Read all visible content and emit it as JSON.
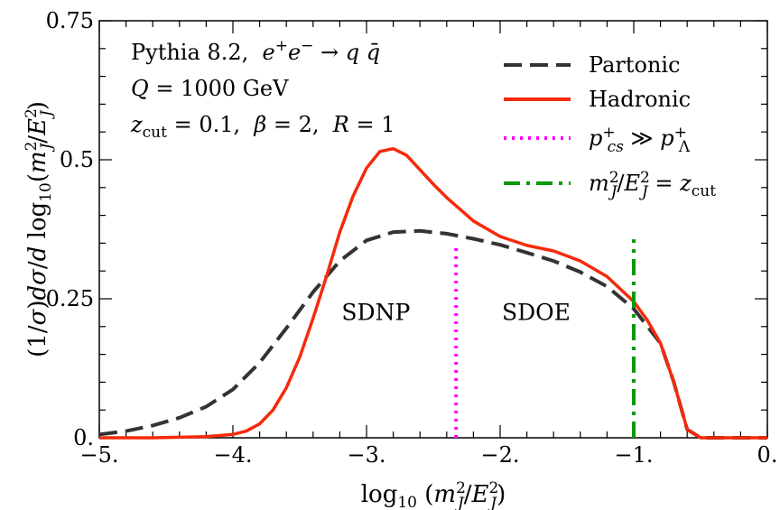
{
  "chart_data": {
    "type": "line",
    "title": "",
    "xlabel": "log₁₀(m²J/E²J)",
    "ylabel": "(1/σ)dσ/d log₁₀(m²J/E²J)",
    "xlim": [
      -5.0,
      0.0
    ],
    "ylim": [
      0.0,
      0.75
    ],
    "x_ticks": [
      -5,
      -4,
      -3,
      -2,
      -1,
      0
    ],
    "x_tick_labels": [
      "−5.",
      "−4.",
      "−3.",
      "−2.",
      "−1.",
      "0."
    ],
    "y_ticks": [
      0,
      0.25,
      0.5,
      0.75
    ],
    "y_tick_labels": [
      "0.",
      "0.25",
      "0.5",
      "0.75"
    ],
    "grid": false,
    "legend_position": "top-right",
    "info_lines": [
      {
        "main": "Pythia 8.2,  e⁺e⁻ → q q̄"
      },
      {
        "main": "Q = 1000 GeV"
      },
      {
        "main": "z_cut = 0.1,  β = 2,  R = 1"
      }
    ],
    "region_labels": [
      {
        "text": "SDNP",
        "x": -2.93,
        "y": 0.225
      },
      {
        "text": "SDOE",
        "x": -1.73,
        "y": 0.225
      }
    ],
    "series": [
      {
        "name": "Partonic",
        "color": "#333333",
        "style": "dashed",
        "x": [
          -5.0,
          -4.8,
          -4.6,
          -4.4,
          -4.2,
          -4.0,
          -3.8,
          -3.6,
          -3.4,
          -3.2,
          -3.0,
          -2.8,
          -2.6,
          -2.4,
          -2.2,
          -2.0,
          -1.8,
          -1.6,
          -1.4,
          -1.2,
          -1.0,
          -0.8,
          -0.7,
          -0.6,
          -0.5,
          -0.4,
          -0.2,
          0.0
        ],
        "values": [
          0.006,
          0.012,
          0.022,
          0.036,
          0.056,
          0.087,
          0.135,
          0.197,
          0.262,
          0.318,
          0.355,
          0.37,
          0.372,
          0.367,
          0.358,
          0.347,
          0.333,
          0.318,
          0.298,
          0.272,
          0.232,
          0.17,
          0.1,
          0.015,
          0.0,
          0.0,
          0.0,
          0.0
        ]
      },
      {
        "name": "Hadronic",
        "color": "#f52a0a",
        "style": "solid",
        "x": [
          -5.0,
          -4.6,
          -4.2,
          -4.0,
          -3.9,
          -3.8,
          -3.7,
          -3.6,
          -3.5,
          -3.4,
          -3.3,
          -3.2,
          -3.1,
          -3.0,
          -2.9,
          -2.8,
          -2.7,
          -2.6,
          -2.5,
          -2.4,
          -2.2,
          -2.0,
          -1.8,
          -1.6,
          -1.4,
          -1.2,
          -1.0,
          -0.9,
          -0.8,
          -0.7,
          -0.6,
          -0.5,
          -0.4,
          -0.2,
          0.0
        ],
        "values": [
          0.0,
          0.0,
          0.002,
          0.006,
          0.012,
          0.025,
          0.05,
          0.09,
          0.145,
          0.215,
          0.29,
          0.37,
          0.435,
          0.485,
          0.515,
          0.52,
          0.508,
          0.482,
          0.456,
          0.432,
          0.39,
          0.362,
          0.346,
          0.336,
          0.318,
          0.29,
          0.245,
          0.212,
          0.17,
          0.1,
          0.015,
          0.0,
          0.0,
          0.0,
          0.0
        ]
      },
      {
        "name": "p⁺_cs ≫ p⁺_Λ",
        "color": "#ff00ff",
        "style": "dotted",
        "x": [
          -2.33,
          -2.33
        ],
        "values": [
          0.0,
          0.343
        ]
      },
      {
        "name": "m²J/E²J = z_cut",
        "color": "#0a9a0a",
        "style": "dashdot",
        "x": [
          -1.0,
          -1.0
        ],
        "values": [
          0.0,
          0.357
        ]
      }
    ]
  }
}
